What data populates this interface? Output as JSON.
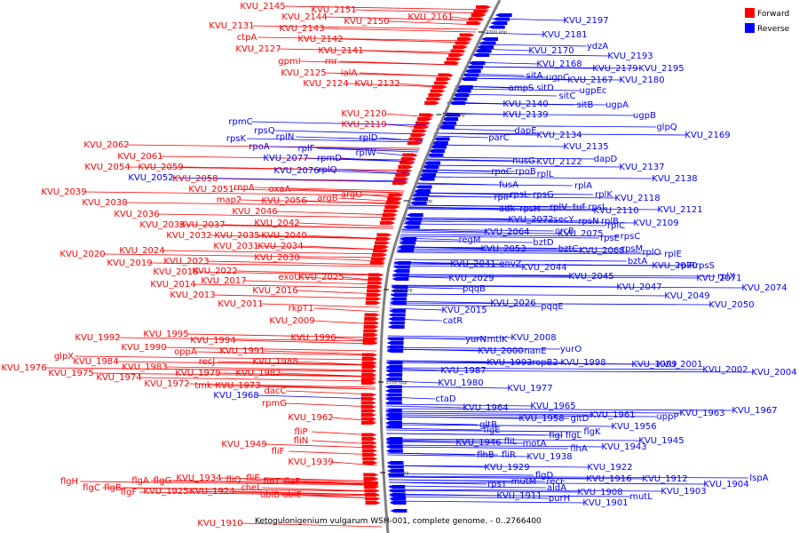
{
  "title": "Ketogulonigenium vulgarum WSH-001, complete genome. - 0..2766400",
  "legend": [
    {
      "label": "Forward",
      "color": "#ff0000"
    },
    {
      "label": "Reverse",
      "color": "#0000ff"
    }
  ],
  "colors": {
    "forward": "#ff0000",
    "reverse": "#0000ff",
    "backbone": "#808080"
  },
  "ticks": [
    "2300 kbp",
    "2250 kbp",
    "2200 kbp",
    "2150 kbp",
    "2100 kbp",
    "2050 kbp"
  ],
  "forward_labels": [
    [
      "KVU_2145",
      296,
      10
    ],
    [
      "KVU_2151",
      376,
      14
    ],
    [
      "KVU_2144",
      343,
      22
    ],
    [
      "KVU_2150",
      413,
      27
    ],
    [
      "KVU_2161",
      485,
      22
    ],
    [
      "KVU_2131",
      261,
      32
    ],
    [
      "KVU_2143",
      340,
      35
    ],
    [
      "ctpA",
      278,
      45
    ],
    [
      "KVU_2142",
      361,
      47
    ],
    [
      "KVU_2127",
      291,
      58
    ],
    [
      "KVU_2141",
      384,
      60
    ],
    [
      "gpmI",
      326,
      72
    ],
    [
      "rnr",
      373,
      72
    ],
    [
      "KVU_2125",
      342,
      85
    ],
    [
      "ialA",
      393,
      85
    ],
    [
      "KVU_2124",
      367,
      97
    ],
    [
      "KVU_2132",
      425,
      97
    ],
    [
      "KVU_2120",
      410,
      131
    ],
    [
      "KVU_2119",
      410,
      143
    ],
    [
      "KVU_2062",
      120,
      166
    ],
    [
      "KVU_2061",
      158,
      179
    ],
    [
      "KVU_2054",
      121,
      191
    ],
    [
      "KVU_2059",
      181,
      191
    ],
    [
      "KVU_2058",
      220,
      204
    ],
    [
      "rnpA",
      275,
      214
    ],
    [
      "oxaA",
      315,
      216
    ],
    [
      "KVU_2051",
      238,
      216
    ],
    [
      "map2",
      258,
      228
    ],
    [
      "KVU_2056",
      320,
      229
    ],
    [
      "argB",
      369,
      226
    ],
    [
      "argO",
      396,
      222
    ],
    [
      "KVU_2039",
      72,
      219
    ],
    [
      "KVU_2038",
      118,
      231
    ],
    [
      "KVU_2046",
      287,
      241
    ],
    [
      "KVU_2036",
      154,
      244
    ],
    [
      "KVU_2042",
      312,
      254
    ],
    [
      "KVU_2033",
      183,
      256
    ],
    [
      "KVU_2037",
      228,
      256
    ],
    [
      "KVU_2032",
      213,
      268
    ],
    [
      "KVU_2035",
      267,
      268
    ],
    [
      "KVU_2040",
      320,
      268
    ],
    [
      "KVU_2031",
      266,
      280
    ],
    [
      "KVU_2034",
      316,
      280
    ],
    [
      "KVU_2020",
      93,
      289
    ],
    [
      "KVU_2024",
      160,
      285
    ],
    [
      "KVU_2030",
      312,
      293
    ],
    [
      "KVU_2019",
      146,
      299
    ],
    [
      "KVU_2023",
      210,
      297
    ],
    [
      "KVU_2018",
      198,
      309
    ],
    [
      "KVU_2022",
      242,
      308
    ],
    [
      "KVU_2017",
      252,
      319
    ],
    [
      "exoU",
      326,
      315
    ],
    [
      "KVU_2025",
      362,
      315
    ],
    [
      "KVU_2014",
      195,
      323
    ],
    [
      "KVU_2016",
      310,
      330
    ],
    [
      "KVU_2013",
      217,
      335
    ],
    [
      "KVU_2011",
      271,
      345
    ],
    [
      "rkpT1",
      339,
      350
    ],
    [
      "KVU_2009",
      329,
      364
    ],
    [
      "KVU_1992",
      110,
      383
    ],
    [
      "KVU_1995",
      187,
      379
    ],
    [
      "KVU_1994",
      240,
      386
    ],
    [
      "KVU_1996",
      353,
      383
    ],
    [
      "KVU_1990",
      162,
      394
    ],
    [
      "oppA",
      209,
      399
    ],
    [
      "KVU_1991",
      273,
      398
    ],
    [
      "glpX",
      72,
      404
    ],
    [
      "KVU_1984",
      108,
      410
    ],
    [
      "recJ",
      233,
      410
    ],
    [
      "KVU_1988",
      310,
      410
    ],
    [
      "KVU_1983",
      163,
      416
    ],
    [
      "KVU_1976",
      27,
      417
    ],
    [
      "KVU_1975",
      80,
      423
    ],
    [
      "KVU_1979",
      223,
      423
    ],
    [
      "KVU_1982",
      291,
      423
    ],
    [
      "KVU_1974",
      134,
      428
    ],
    [
      "KVU_1972",
      188,
      435
    ],
    [
      "tmk",
      229,
      437
    ],
    [
      "KVU_1973",
      268,
      437
    ],
    [
      "dacC",
      310,
      443
    ],
    [
      "rpmG",
      309,
      457
    ],
    [
      "KVU_1962",
      350,
      473
    ],
    [
      "fliP",
      339,
      489
    ],
    [
      "KVU_1949",
      275,
      503
    ],
    [
      "fliN",
      339,
      499
    ],
    [
      "fliF",
      313,
      511
    ],
    [
      "KVU_1939",
      350,
      523
    ],
    [
      "flgH",
      78,
      545
    ],
    [
      "flgA",
      158,
      544
    ],
    [
      "flgG",
      183,
      544
    ],
    [
      "KVU_1934",
      224,
      541
    ],
    [
      "fliQ",
      263,
      543
    ],
    [
      "fliE",
      285,
      541
    ],
    [
      "flgC",
      103,
      552
    ],
    [
      "flgB",
      127,
      552
    ],
    [
      "flbT",
      306,
      545
    ],
    [
      "flaF",
      329,
      545
    ],
    [
      "flgF",
      145,
      557
    ],
    [
      "KVU_1925",
      187,
      556
    ],
    [
      "KVU_1924",
      239,
      556
    ],
    [
      "cheL",
      283,
      552
    ],
    [
      "ubiB",
      304,
      560
    ],
    [
      "ubiE",
      329,
      560
    ],
    [
      "KVU_1910",
      248,
      592
    ]
  ],
  "reverse_labels": [
    [
      "KVU_2197",
      660,
      26
    ],
    [
      "KVU_2181",
      636,
      42
    ],
    [
      "ydzA",
      673,
      55
    ],
    [
      "KVU_2170",
      621,
      60
    ],
    [
      "KVU_2193",
      710,
      66
    ],
    [
      "KVU_2168",
      630,
      75
    ],
    [
      "KVU_2179",
      693,
      80
    ],
    [
      "KVU_2195",
      745,
      80
    ],
    [
      "sitA",
      602,
      88
    ],
    [
      "ugpC",
      628,
      90
    ],
    [
      "KVU_2167",
      665,
      93
    ],
    [
      "KVU_2180",
      723,
      93
    ],
    [
      "ampS",
      587,
      102
    ],
    [
      "sitD",
      614,
      102
    ],
    [
      "ugpEc",
      668,
      105
    ],
    [
      "sitC",
      639,
      111
    ],
    [
      "sitB",
      659,
      121
    ],
    [
      "ugpA",
      695,
      121
    ],
    [
      "KVU_2140",
      592,
      120
    ],
    [
      "KVU_2139",
      592,
      132
    ],
    [
      "ugpB",
      726,
      133
    ],
    [
      "glpQ",
      751,
      146
    ],
    [
      "dapE",
      592,
      150
    ],
    [
      "KVU_2134",
      630,
      155
    ],
    [
      "KVU_2169",
      797,
      155
    ],
    [
      "parC",
      562,
      158
    ],
    [
      "KVU_2135",
      660,
      168
    ],
    [
      "dapD",
      682,
      182
    ],
    [
      "nusG",
      590,
      184
    ],
    [
      "KVU_2122",
      630,
      185
    ],
    [
      "KVU_2137",
      723,
      191
    ],
    [
      "rpoC",
      565,
      196
    ],
    [
      "rpoB",
      592,
      196
    ],
    [
      "KVU_2138",
      760,
      204
    ],
    [
      "rplL",
      614,
      199
    ],
    [
      "fusA",
      573,
      211
    ],
    [
      "rplA",
      657,
      212
    ],
    [
      "rpsL",
      585,
      222
    ],
    [
      "rpsG",
      612,
      222
    ],
    [
      "rplK",
      680,
      222
    ],
    [
      "KVU_2118",
      718,
      226
    ],
    [
      "rplP",
      566,
      225
    ],
    [
      "adk",
      571,
      238
    ],
    [
      "rpsH",
      597,
      238
    ],
    [
      "rplV",
      629,
      236
    ],
    [
      "tuf",
      652,
      236
    ],
    [
      "rpsL",
      673,
      236
    ],
    [
      "KVU_2110",
      694,
      240
    ],
    [
      "KVU_2121",
      766,
      239
    ],
    [
      "KVU_2072",
      598,
      250
    ],
    [
      "secY",
      635,
      250
    ],
    [
      "rpsN",
      663,
      252
    ],
    [
      "rplB",
      687,
      252
    ],
    [
      "KVU_2109",
      739,
      254
    ],
    [
      "crcB",
      636,
      263
    ],
    [
      "rplC",
      694,
      257
    ],
    [
      "KVU_2064",
      571,
      264
    ],
    [
      "KVU_2075",
      654,
      266
    ],
    [
      "rpsE",
      687,
      271
    ],
    [
      "rpsC",
      710,
      269
    ],
    [
      "bztD",
      612,
      276
    ],
    [
      "rpsM",
      712,
      283
    ],
    [
      "rplO",
      734,
      287
    ],
    [
      "rplE",
      758,
      289
    ],
    [
      "regM",
      529,
      273
    ],
    [
      "KVU_2053",
      567,
      283
    ],
    [
      "bztC",
      640,
      283
    ],
    [
      "KVU_2068",
      678,
      285
    ],
    [
      "bztA",
      718,
      297
    ],
    [
      "KVU_2070",
      760,
      302
    ],
    [
      "rplR",
      773,
      302
    ],
    [
      "rpsS",
      794,
      302
    ],
    [
      "KVU_2041",
      533,
      300
    ],
    [
      "envZ",
      575,
      300
    ],
    [
      "KVU_2044",
      613,
      304
    ],
    [
      "KVU_2045",
      666,
      314
    ],
    [
      "rplX",
      818,
      314
    ],
    [
      "KVU_2071",
      810,
      316
    ],
    [
      "KVU_2029",
      531,
      316
    ],
    [
      "KVU_2047",
      720,
      326
    ],
    [
      "KVU_2074",
      861,
      327
    ],
    [
      "pqqB",
      534,
      328
    ],
    [
      "KVU_2049",
      774,
      336
    ],
    [
      "KVU_2026",
      578,
      344
    ],
    [
      "pqqE",
      622,
      348
    ],
    [
      "KVU_2050",
      824,
      346
    ],
    [
      "KVU_2015",
      523,
      352
    ],
    [
      "catR",
      510,
      364
    ],
    [
      "yurN",
      536,
      385
    ],
    [
      "mtlK",
      560,
      385
    ],
    [
      "KVU_2008",
      601,
      383
    ],
    [
      "KVU_2000",
      564,
      398
    ],
    [
      "nanE",
      603,
      398
    ],
    [
      "yurO",
      643,
      396
    ],
    [
      "KVU_1993",
      574,
      411
    ],
    [
      "ropB2",
      614,
      411
    ],
    [
      "KVU_1998",
      657,
      411
    ],
    [
      "KVU_1999",
      737,
      413
    ],
    [
      "KVU_2001",
      766,
      413
    ],
    [
      "KVU_2002",
      817,
      419
    ],
    [
      "KVU_2004",
      872,
      422
    ],
    [
      "KVU_1987",
      522,
      420
    ],
    [
      "KVU_1980",
      519,
      434
    ],
    [
      "KVU_1977",
      597,
      440
    ],
    [
      "ctaD",
      502,
      452
    ],
    [
      "KVU_1964",
      547,
      462
    ],
    [
      "KVU_1965",
      623,
      460
    ],
    [
      "KVU_1958",
      610,
      474
    ],
    [
      "gltD",
      653,
      474
    ],
    [
      "KVU_1961",
      690,
      470
    ],
    [
      "uppP",
      752,
      472
    ],
    [
      "KVU_1963",
      791,
      468
    ],
    [
      "KVU_1967",
      850,
      465
    ],
    [
      "gltB",
      550,
      481
    ],
    [
      "KVU_1956",
      714,
      483
    ],
    [
      "flgE",
      554,
      487
    ],
    [
      "flgI",
      626,
      493
    ],
    [
      "flgL",
      646,
      493
    ],
    [
      "flgK",
      667,
      489
    ],
    [
      "KVU_1945",
      745,
      499
    ],
    [
      "KVU_1946",
      539,
      501
    ],
    [
      "fliL",
      575,
      500
    ],
    [
      "motA",
      602,
      502
    ],
    [
      "flhA",
      652,
      508
    ],
    [
      "KVU_1943",
      703,
      506
    ],
    [
      "flhB",
      547,
      515
    ],
    [
      "fliR",
      573,
      515
    ],
    [
      "KVU_1938",
      619,
      517
    ],
    [
      "KVU_1929",
      571,
      529
    ],
    [
      "KVU_1922",
      687,
      529
    ],
    [
      "flgD",
      613,
      538
    ],
    [
      "KVU_1916",
      686,
      542
    ],
    [
      "KVU_1912",
      749,
      542
    ],
    [
      "lspA",
      855,
      541
    ],
    [
      "rpsT",
      560,
      548
    ],
    [
      "mutM",
      590,
      545
    ],
    [
      "recF",
      626,
      545
    ],
    [
      "aldA",
      627,
      552
    ],
    [
      "KVU_1904",
      818,
      548
    ],
    [
      "KVU_1908",
      676,
      557
    ],
    [
      "KVU_1903",
      770,
      556
    ],
    [
      "KVU_1911",
      585,
      561
    ],
    [
      "purH",
      630,
      564
    ],
    [
      "mutL",
      722,
      562
    ],
    [
      "KVU_1901",
      682,
      569
    ],
    [
      "KVU_1968",
      266,
      448
    ],
    [
      "KVU_2052",
      170,
      203
    ],
    [
      "KVU_2077",
      322,
      181
    ],
    [
      "KVU_2076",
      334,
      195
    ],
    [
      "rpmC",
      271,
      140
    ],
    [
      "rpsQ",
      298,
      150
    ],
    [
      "rpsK",
      266,
      159
    ],
    [
      "rplN",
      321,
      157
    ],
    [
      "rpoA",
      292,
      168
    ],
    [
      "rplF",
      345,
      170
    ],
    [
      "rplD",
      415,
      158
    ],
    [
      "rpmD",
      371,
      181
    ],
    [
      "rplW",
      412,
      175
    ],
    [
      "rplQ",
      369,
      194
    ]
  ]
}
